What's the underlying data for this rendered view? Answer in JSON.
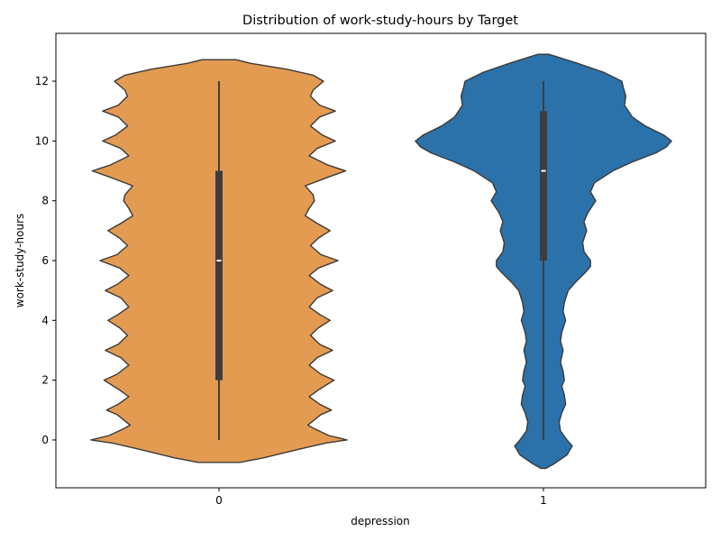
{
  "chart_data": {
    "type": "violin",
    "title": "Distribution of work-study-hours by Target",
    "xlabel": "depression",
    "ylabel": "work-study-hours",
    "categories": [
      "0",
      "1"
    ],
    "ylim": [
      -1.6,
      13.6
    ],
    "yticks": [
      0,
      2,
      4,
      6,
      8,
      10,
      12
    ],
    "grid": false,
    "colors": {
      "0": "#e39b51",
      "1": "#2b72ab",
      "edge": "#3a3a3a",
      "box": "#3d3d3d",
      "median": "#ffffff"
    },
    "series": [
      {
        "category": "0",
        "color": "#e39b51",
        "box": {
          "min": 0,
          "q1": 2,
          "median": 6,
          "q3": 9,
          "max": 12
        },
        "density": [
          [
            -0.75,
            0.16
          ],
          [
            -0.6,
            0.34
          ],
          [
            -0.3,
            0.62
          ],
          [
            -0.1,
            0.82
          ],
          [
            0.0,
            0.98
          ],
          [
            0.15,
            0.84
          ],
          [
            0.4,
            0.72
          ],
          [
            0.5,
            0.68
          ],
          [
            0.6,
            0.71
          ],
          [
            0.85,
            0.78
          ],
          [
            1.0,
            0.86
          ],
          [
            1.2,
            0.77
          ],
          [
            1.45,
            0.69
          ],
          [
            1.7,
            0.77
          ],
          [
            2.0,
            0.88
          ],
          [
            2.2,
            0.78
          ],
          [
            2.5,
            0.69
          ],
          [
            2.75,
            0.75
          ],
          [
            3.0,
            0.87
          ],
          [
            3.2,
            0.77
          ],
          [
            3.5,
            0.7
          ],
          [
            3.75,
            0.76
          ],
          [
            4.0,
            0.85
          ],
          [
            4.2,
            0.77
          ],
          [
            4.45,
            0.69
          ],
          [
            4.75,
            0.75
          ],
          [
            5.0,
            0.87
          ],
          [
            5.2,
            0.78
          ],
          [
            5.5,
            0.69
          ],
          [
            5.75,
            0.76
          ],
          [
            6.0,
            0.91
          ],
          [
            6.2,
            0.78
          ],
          [
            6.5,
            0.7
          ],
          [
            6.75,
            0.76
          ],
          [
            7.0,
            0.85
          ],
          [
            7.25,
            0.75
          ],
          [
            7.5,
            0.66
          ],
          [
            7.75,
            0.69
          ],
          [
            8.0,
            0.73
          ],
          [
            8.2,
            0.72
          ],
          [
            8.5,
            0.66
          ],
          [
            8.8,
            0.84
          ],
          [
            9.0,
            0.97
          ],
          [
            9.2,
            0.83
          ],
          [
            9.5,
            0.69
          ],
          [
            9.75,
            0.75
          ],
          [
            10.0,
            0.89
          ],
          [
            10.2,
            0.79
          ],
          [
            10.5,
            0.7
          ],
          [
            10.8,
            0.77
          ],
          [
            11.0,
            0.89
          ],
          [
            11.2,
            0.77
          ],
          [
            11.5,
            0.7
          ],
          [
            11.7,
            0.72
          ],
          [
            12.0,
            0.8
          ],
          [
            12.2,
            0.72
          ],
          [
            12.4,
            0.52
          ],
          [
            12.6,
            0.24
          ],
          [
            12.72,
            0.13
          ]
        ]
      },
      {
        "category": "1",
        "color": "#2b72ab",
        "box": {
          "min": 0,
          "q1": 6,
          "median": 9,
          "q3": 11,
          "max": 12
        },
        "density": [
          [
            -0.95,
            0.02
          ],
          [
            -0.8,
            0.08
          ],
          [
            -0.5,
            0.18
          ],
          [
            -0.2,
            0.22
          ],
          [
            0.0,
            0.18
          ],
          [
            0.3,
            0.13
          ],
          [
            0.6,
            0.12
          ],
          [
            0.9,
            0.14
          ],
          [
            1.2,
            0.17
          ],
          [
            1.5,
            0.16
          ],
          [
            1.8,
            0.14
          ],
          [
            2.0,
            0.16
          ],
          [
            2.3,
            0.15
          ],
          [
            2.6,
            0.13
          ],
          [
            3.0,
            0.15
          ],
          [
            3.3,
            0.13
          ],
          [
            3.6,
            0.14
          ],
          [
            4.0,
            0.17
          ],
          [
            4.3,
            0.15
          ],
          [
            4.6,
            0.16
          ],
          [
            5.0,
            0.19
          ],
          [
            5.3,
            0.25
          ],
          [
            5.6,
            0.32
          ],
          [
            5.8,
            0.36
          ],
          [
            6.0,
            0.36
          ],
          [
            6.3,
            0.31
          ],
          [
            6.6,
            0.3
          ],
          [
            7.0,
            0.33
          ],
          [
            7.3,
            0.31
          ],
          [
            7.6,
            0.34
          ],
          [
            8.0,
            0.4
          ],
          [
            8.3,
            0.36
          ],
          [
            8.6,
            0.39
          ],
          [
            9.0,
            0.53
          ],
          [
            9.3,
            0.68
          ],
          [
            9.6,
            0.86
          ],
          [
            9.8,
            0.94
          ],
          [
            10.0,
            0.98
          ],
          [
            10.2,
            0.92
          ],
          [
            10.5,
            0.78
          ],
          [
            10.8,
            0.68
          ],
          [
            11.0,
            0.65
          ],
          [
            11.2,
            0.62
          ],
          [
            11.5,
            0.63
          ],
          [
            11.8,
            0.61
          ],
          [
            12.0,
            0.6
          ],
          [
            12.3,
            0.46
          ],
          [
            12.6,
            0.26
          ],
          [
            12.85,
            0.08
          ],
          [
            12.9,
            0.04
          ]
        ]
      }
    ]
  }
}
